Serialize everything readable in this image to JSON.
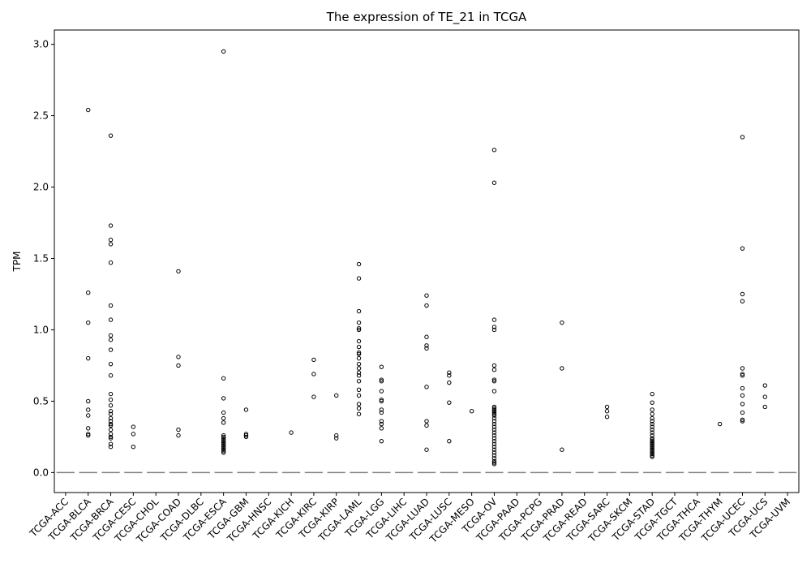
{
  "chart_data": {
    "type": "box",
    "title": "The expression of TE_21 in TCGA",
    "xlabel": "",
    "ylabel": "TPM",
    "ylim": [
      -0.14,
      3.1
    ],
    "yticks": [
      0.0,
      0.5,
      1.0,
      1.5,
      2.0,
      2.5,
      3.0
    ],
    "ytick_labels": [
      "0.0",
      "0.5",
      "1.0",
      "1.5",
      "2.0",
      "2.5",
      "3.0"
    ],
    "grid": false,
    "legend": "none",
    "median_color": "#808080",
    "outlier_color": "#000000",
    "categories": [
      "TCGA-ACC",
      "TCGA-BLCA",
      "TCGA-BRCA",
      "TCGA-CESC",
      "TCGA-CHOL",
      "TCGA-COAD",
      "TCGA-DLBC",
      "TCGA-ESCA",
      "TCGA-GBM",
      "TCGA-HNSC",
      "TCGA-KICH",
      "TCGA-KIRC",
      "TCGA-KIRP",
      "TCGA-LAML",
      "TCGA-LGG",
      "TCGA-LIHC",
      "TCGA-LUAD",
      "TCGA-LUSC",
      "TCGA-MESO",
      "TCGA-OV",
      "TCGA-PAAD",
      "TCGA-PCPG",
      "TCGA-PRAD",
      "TCGA-READ",
      "TCGA-SARC",
      "TCGA-SKCM",
      "TCGA-STAD",
      "TCGA-TGCT",
      "TCGA-THCA",
      "TCGA-THYM",
      "TCGA-UCEC",
      "TCGA-UCS",
      "TCGA-UVM"
    ],
    "medians": [
      0,
      0,
      0,
      0,
      0,
      0,
      0,
      0,
      0,
      0,
      0,
      0,
      0,
      0,
      0,
      0,
      0,
      0,
      0,
      0,
      0,
      0,
      0,
      0,
      0,
      0,
      0,
      0,
      0,
      0,
      0,
      0,
      0
    ],
    "outliers": [
      [],
      [
        2.54,
        1.26,
        1.05,
        0.8,
        0.5,
        0.44,
        0.4,
        0.31,
        0.27,
        0.26
      ],
      [
        2.36,
        1.73,
        1.63,
        1.6,
        1.47,
        1.17,
        1.07,
        0.96,
        0.93,
        0.86,
        0.76,
        0.68,
        0.55,
        0.51,
        0.47,
        0.43,
        0.41,
        0.38,
        0.36,
        0.34,
        0.33,
        0.3,
        0.27,
        0.25,
        0.24,
        0.2,
        0.18
      ],
      [
        0.32,
        0.27,
        0.18
      ],
      [],
      [
        1.41,
        0.81,
        0.75,
        0.3,
        0.26
      ],
      [],
      [
        2.95,
        0.66,
        0.52,
        0.42,
        0.38,
        0.35,
        0.26,
        0.25,
        0.24,
        0.23,
        0.22,
        0.21,
        0.2,
        0.19,
        0.18,
        0.17,
        0.16,
        0.15,
        0.14
      ],
      [
        0.44,
        0.27,
        0.26,
        0.25
      ],
      [],
      [
        0.28
      ],
      [
        0.79,
        0.69,
        0.53
      ],
      [
        0.54,
        0.26,
        0.24
      ],
      [
        1.46,
        1.36,
        1.13,
        1.05,
        1.01,
        1.0,
        0.92,
        0.88,
        0.84,
        0.83,
        0.8,
        0.76,
        0.73,
        0.7,
        0.68,
        0.64,
        0.58,
        0.54,
        0.48,
        0.45,
        0.41
      ],
      [
        0.74,
        0.65,
        0.64,
        0.57,
        0.51,
        0.5,
        0.44,
        0.42,
        0.36,
        0.34,
        0.31,
        0.22
      ],
      [],
      [
        1.24,
        1.17,
        0.95,
        0.89,
        0.87,
        0.6,
        0.36,
        0.33,
        0.16
      ],
      [
        0.7,
        0.68,
        0.63,
        0.49,
        0.22
      ],
      [
        0.43
      ],
      [
        2.26,
        2.03,
        1.07,
        1.02,
        1.0,
        0.75,
        0.72,
        0.65,
        0.64,
        0.57,
        0.46,
        0.45,
        0.44,
        0.43,
        0.42,
        0.41,
        0.4,
        0.38,
        0.36,
        0.34,
        0.32,
        0.3,
        0.28,
        0.26,
        0.24,
        0.22,
        0.2,
        0.18,
        0.16,
        0.14,
        0.12,
        0.1,
        0.08,
        0.07,
        0.06
      ],
      [],
      [],
      [
        1.05,
        0.73,
        0.16
      ],
      [],
      [
        0.46,
        0.43,
        0.39
      ],
      [],
      [
        0.55,
        0.49,
        0.44,
        0.41,
        0.38,
        0.36,
        0.34,
        0.32,
        0.3,
        0.28,
        0.26,
        0.24,
        0.23,
        0.22,
        0.21,
        0.2,
        0.19,
        0.18,
        0.17,
        0.16,
        0.15,
        0.14,
        0.13,
        0.12,
        0.11
      ],
      [],
      [],
      [
        0.34
      ],
      [
        2.35,
        1.57,
        1.25,
        1.2,
        0.73,
        0.69,
        0.68,
        0.59,
        0.54,
        0.48,
        0.42,
        0.37,
        0.36
      ],
      [
        0.61,
        0.53,
        0.46
      ],
      []
    ]
  }
}
